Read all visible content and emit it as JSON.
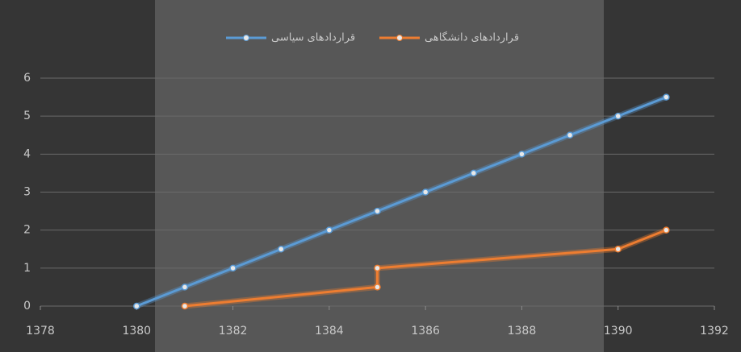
{
  "chart_data": {
    "type": "line",
    "series": [
      {
        "name": "قراردادهای سیاسی",
        "color": "#5b9bd5",
        "x": [
          1380,
          1381,
          1382,
          1383,
          1384,
          1385,
          1386,
          1387,
          1388,
          1389,
          1390,
          1391
        ],
        "values": [
          0,
          0.5,
          1,
          1.5,
          2,
          2.5,
          3,
          3.5,
          4,
          4.5,
          5,
          5.5
        ]
      },
      {
        "name": "قراردادهای دانشگاهی",
        "color": "#ed7d31",
        "x": [
          1381,
          1385,
          1385,
          1390,
          1391
        ],
        "values": [
          0,
          0.5,
          1,
          1.5,
          2
        ]
      }
    ],
    "xlim": [
      1378,
      1392
    ],
    "xticks": [
      1378,
      1380,
      1382,
      1384,
      1386,
      1388,
      1390,
      1392
    ],
    "ylim": [
      0,
      6
    ],
    "yticks": [
      0,
      1,
      2,
      3,
      4,
      5,
      6
    ],
    "grid": true
  }
}
